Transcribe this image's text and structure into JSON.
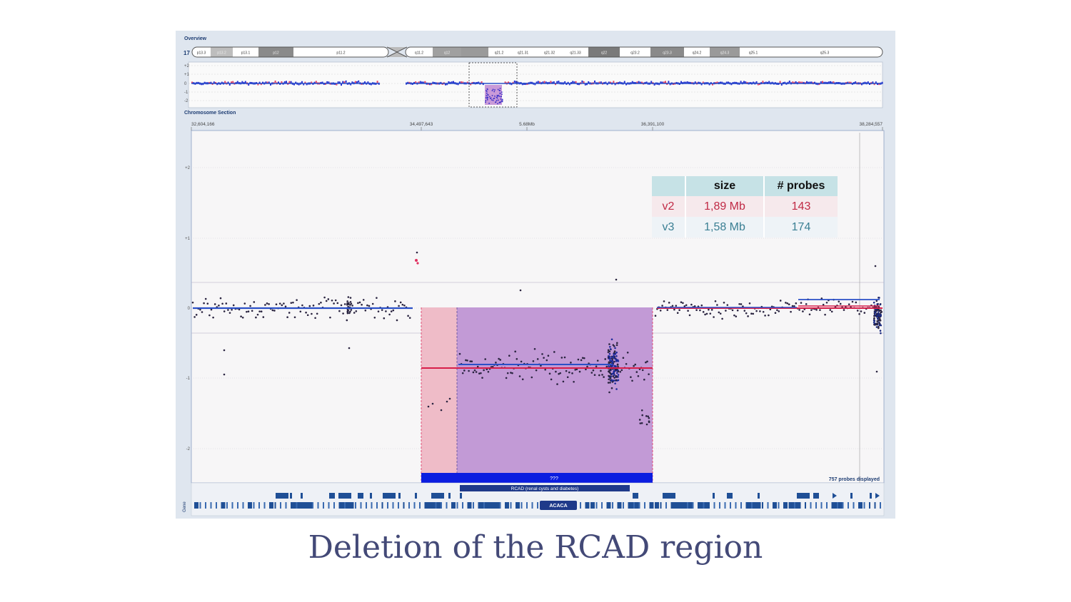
{
  "overview": {
    "title": "Overview",
    "chromosome": "17",
    "bands": [
      "p13.3",
      "p13.2",
      "p13.1",
      "p12",
      "p11.2",
      "q11.2",
      "q12",
      "q21.2",
      "q21.31",
      "q21.32",
      "q21.33",
      "q22",
      "q23.2",
      "q23.3",
      "q24.2",
      "q24.3",
      "q25.1",
      "q25.3"
    ],
    "y_ticks": [
      "+2",
      "+1",
      "0",
      "-1",
      "-2"
    ]
  },
  "section": {
    "title": "Chromosome Section",
    "coords": [
      "32,604,166",
      "34,497,643",
      "5.68Mb",
      "36,391,100",
      "38,284,557"
    ],
    "y_ticks": [
      "+2",
      "+1",
      "0",
      "-1",
      "-2"
    ],
    "probes_displayed": "757 probes displayed",
    "cnv_bar_label": "???",
    "gene_region_label": "RCAD (renal cysts and diabetes)",
    "gene_label": "ACACA",
    "track_label": "Gene"
  },
  "probe_table": {
    "headers": [
      "",
      "size",
      "# probes"
    ],
    "rows": [
      {
        "version": "v2",
        "size": "1,89 Mb",
        "probes": "143"
      },
      {
        "version": "v3",
        "size": "1,58 Mb",
        "probes": "174"
      }
    ]
  },
  "colors": {
    "blue_line": "#2a4fc7",
    "red_line": "#d81e4a",
    "deletion_purple": "#c29ad6",
    "deletion_pink": "#efbcc8",
    "cnv_bar": "#0b1de0"
  },
  "caption": "Deletion of the RCAD region"
}
